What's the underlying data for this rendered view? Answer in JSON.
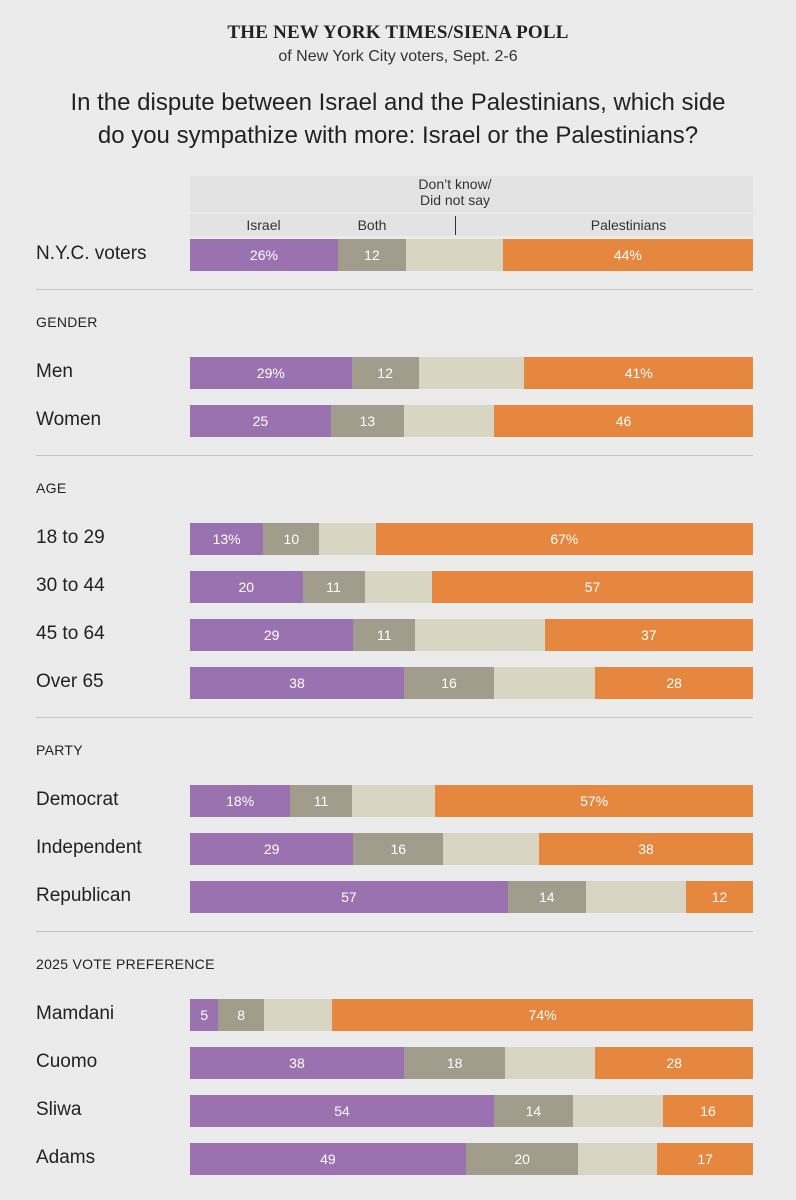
{
  "header": {
    "source": "THE NEW YORK TIMES/SIENA POLL",
    "subtitle": "of New York City voters, Sept. 2-6",
    "question_line1": "In the dispute between Israel and the Palestinians, which side",
    "question_line2": "do you sympathize with more: Israel or the Palestinians?"
  },
  "legend": {
    "israel": "Israel",
    "both": "Both",
    "dont_know_line1": "Don’t know/",
    "dont_know_line2": "Did not say",
    "palestinians": "Palestinians"
  },
  "colors": {
    "israel": "#9b72b0",
    "both": "#a19c8c",
    "dont_know": "#d8d5c2",
    "palestinians": "#e5873f"
  },
  "chart_data": {
    "type": "bar",
    "stacked": true,
    "orientation": "horizontal",
    "series_names": [
      "Israel",
      "Both",
      "Don’t know/Did not say",
      "Palestinians"
    ],
    "groups": [
      {
        "title": "",
        "rows": [
          {
            "label": "N.Y.C. voters",
            "values": [
              26,
              12,
              17,
              44
            ],
            "labels": [
              "26%",
              "12",
              "",
              "44%"
            ]
          }
        ]
      },
      {
        "title": "GENDER",
        "rows": [
          {
            "label": "Men",
            "values": [
              29,
              12,
              19,
              41
            ],
            "labels": [
              "29%",
              "12",
              "",
              "41%"
            ]
          },
          {
            "label": "Women",
            "values": [
              25,
              13,
              16,
              46
            ],
            "labels": [
              "25",
              "13",
              "",
              "46"
            ]
          }
        ]
      },
      {
        "title": "AGE",
        "rows": [
          {
            "label": "18 to 29",
            "values": [
              13,
              10,
              10,
              67
            ],
            "labels": [
              "13%",
              "10",
              "",
              "67%"
            ]
          },
          {
            "label": "30 to 44",
            "values": [
              20,
              11,
              12,
              57
            ],
            "labels": [
              "20",
              "11",
              "",
              "57"
            ]
          },
          {
            "label": "45 to 64",
            "values": [
              29,
              11,
              23,
              37
            ],
            "labels": [
              "29",
              "11",
              "",
              "37"
            ]
          },
          {
            "label": "Over 65",
            "values": [
              38,
              16,
              18,
              28
            ],
            "labels": [
              "38",
              "16",
              "",
              "28"
            ]
          }
        ]
      },
      {
        "title": "PARTY",
        "rows": [
          {
            "label": "Democrat",
            "values": [
              18,
              11,
              15,
              57
            ],
            "labels": [
              "18%",
              "11",
              "",
              "57%"
            ]
          },
          {
            "label": "Independent",
            "values": [
              29,
              16,
              17,
              38
            ],
            "labels": [
              "29",
              "16",
              "",
              "38"
            ]
          },
          {
            "label": "Republican",
            "values": [
              57,
              14,
              18,
              12
            ],
            "labels": [
              "57",
              "14",
              "",
              "12"
            ]
          }
        ]
      },
      {
        "title": "2025 VOTE PREFERENCE",
        "rows": [
          {
            "label": "Mamdani",
            "values": [
              5,
              8,
              12,
              74
            ],
            "labels": [
              "5",
              "8",
              "",
              "74%"
            ]
          },
          {
            "label": "Cuomo",
            "values": [
              38,
              18,
              16,
              28
            ],
            "labels": [
              "38",
              "18",
              "",
              "28"
            ]
          },
          {
            "label": "Sliwa",
            "values": [
              54,
              14,
              16,
              16
            ],
            "labels": [
              "54",
              "14",
              "",
              "16"
            ]
          },
          {
            "label": "Adams",
            "values": [
              49,
              20,
              14,
              17
            ],
            "labels": [
              "49",
              "20",
              "",
              "17"
            ]
          }
        ]
      }
    ]
  }
}
